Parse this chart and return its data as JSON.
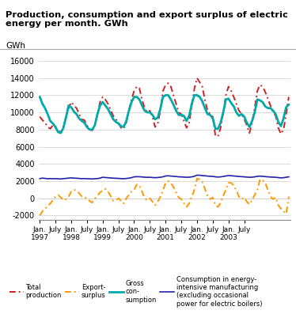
{
  "title": "Production, consumption and export surplus of electric\nenergy per month. GWh",
  "ylabel": "GWh",
  "ylim": [
    -2500,
    16500
  ],
  "yticks": [
    -2000,
    0,
    2000,
    4000,
    6000,
    8000,
    10000,
    12000,
    14000,
    16000
  ],
  "background_color": "#ffffff",
  "grid_color": "#cccccc",
  "series": {
    "total_production": {
      "color": "#cc2222",
      "linewidth": 1.4
    },
    "export_surplus": {
      "color": "#ff9900",
      "linewidth": 1.4
    },
    "gross_consumption": {
      "color": "#00aaaa",
      "linewidth": 2.0
    },
    "energy_intensive": {
      "color": "#2222aa",
      "linewidth": 1.2
    }
  },
  "x_tick_positions": [
    0,
    6,
    12,
    18,
    24,
    30,
    36,
    42,
    48,
    54,
    60,
    66,
    72,
    78
  ],
  "x_tick_labels_line1": [
    "Jan.",
    "July",
    "Jan.",
    "July",
    "Jan.",
    "July",
    "Jan.",
    "July",
    "Jan.",
    "July",
    "Jan.",
    "July",
    "Jan.",
    "July"
  ],
  "x_tick_labels_line2": [
    "1997",
    "",
    "1998",
    "",
    "1999",
    "",
    "2000",
    "",
    "2001",
    "",
    "2002",
    "",
    "2003",
    ""
  ],
  "total_production": [
    9500,
    9100,
    8800,
    8300,
    8100,
    8500,
    8200,
    7800,
    7700,
    8300,
    9500,
    10500,
    11200,
    10800,
    10500,
    9800,
    9200,
    9100,
    8500,
    8000,
    7900,
    8500,
    9800,
    11200,
    11800,
    11500,
    11000,
    10300,
    9600,
    9200,
    8900,
    8200,
    8100,
    8800,
    10200,
    11500,
    12500,
    13000,
    12800,
    11500,
    10500,
    10000,
    10200,
    9500,
    8300,
    8700,
    10200,
    12500,
    13200,
    13400,
    13000,
    12000,
    11000,
    10000,
    9800,
    9000,
    8200,
    8800,
    10800,
    12800,
    14000,
    13500,
    13000,
    11500,
    10200,
    9800,
    9500,
    7300,
    7200,
    8200,
    10000,
    12000,
    13000,
    12500,
    11800,
    11000,
    10200,
    9800,
    9200,
    8500,
    7600,
    8800,
    10500,
    12500,
    13200,
    13000,
    12400,
    11600,
    10800,
    10000,
    9600,
    8200,
    7500,
    8000,
    9800,
    11800
  ],
  "export_surplus": [
    -2000,
    -1500,
    -1200,
    -900,
    -600,
    -200,
    200,
    400,
    100,
    -200,
    -100,
    200,
    800,
    1000,
    900,
    600,
    200,
    100,
    0,
    -300,
    -500,
    0,
    300,
    700,
    900,
    1100,
    800,
    300,
    -300,
    -200,
    0,
    -300,
    -600,
    0,
    400,
    800,
    1000,
    1600,
    1500,
    800,
    0,
    -200,
    0,
    -400,
    -800,
    -400,
    200,
    900,
    1800,
    2000,
    1800,
    1300,
    700,
    100,
    -100,
    -600,
    -1000,
    -600,
    200,
    1000,
    2300,
    2200,
    1900,
    1100,
    300,
    -100,
    100,
    -800,
    -1000,
    -500,
    300,
    1000,
    1800,
    1800,
    1500,
    900,
    200,
    -100,
    100,
    -400,
    -700,
    -200,
    400,
    900,
    2200,
    2100,
    1800,
    1000,
    200,
    -100,
    100,
    -800,
    -1200,
    -1500,
    -1800,
    200
  ],
  "gross_consumption": [
    11800,
    11000,
    10500,
    9800,
    9000,
    8700,
    8300,
    7700,
    7600,
    8200,
    9400,
    10800,
    10600,
    10100,
    9800,
    9300,
    9000,
    8800,
    8300,
    8000,
    8000,
    8500,
    9800,
    10800,
    11200,
    10800,
    10400,
    9800,
    9200,
    8900,
    8700,
    8400,
    8300,
    9000,
    10200,
    11200,
    11800,
    11800,
    11500,
    10800,
    10200,
    10000,
    10000,
    9700,
    9200,
    9400,
    10400,
    11800,
    12000,
    12000,
    11500,
    10900,
    10200,
    9700,
    9700,
    9600,
    9000,
    9600,
    11000,
    12000,
    12000,
    11800,
    11300,
    10500,
    9800,
    9700,
    9300,
    8100,
    8100,
    8800,
    10000,
    11500,
    11600,
    11100,
    10700,
    10000,
    9600,
    9800,
    9500,
    8800,
    8300,
    9000,
    10000,
    11500,
    11400,
    11200,
    10700,
    10500,
    10500,
    10200,
    9800,
    8900,
    8400,
    9300,
    10600,
    10900
  ],
  "energy_intensive": [
    2300,
    2350,
    2320,
    2280,
    2300,
    2280,
    2290,
    2270,
    2260,
    2290,
    2320,
    2350,
    2380,
    2350,
    2340,
    2310,
    2290,
    2300,
    2280,
    2270,
    2260,
    2280,
    2300,
    2350,
    2450,
    2420,
    2400,
    2370,
    2350,
    2330,
    2320,
    2290,
    2280,
    2310,
    2350,
    2400,
    2500,
    2520,
    2510,
    2490,
    2460,
    2440,
    2450,
    2420,
    2400,
    2420,
    2450,
    2500,
    2600,
    2620,
    2590,
    2560,
    2540,
    2500,
    2490,
    2470,
    2450,
    2460,
    2500,
    2560,
    2700,
    2680,
    2650,
    2620,
    2590,
    2560,
    2550,
    2500,
    2480,
    2500,
    2540,
    2600,
    2650,
    2630,
    2600,
    2570,
    2540,
    2520,
    2500,
    2470,
    2450,
    2460,
    2500,
    2560,
    2580,
    2560,
    2530,
    2500,
    2480,
    2460,
    2450,
    2410,
    2380,
    2400,
    2450,
    2500
  ]
}
